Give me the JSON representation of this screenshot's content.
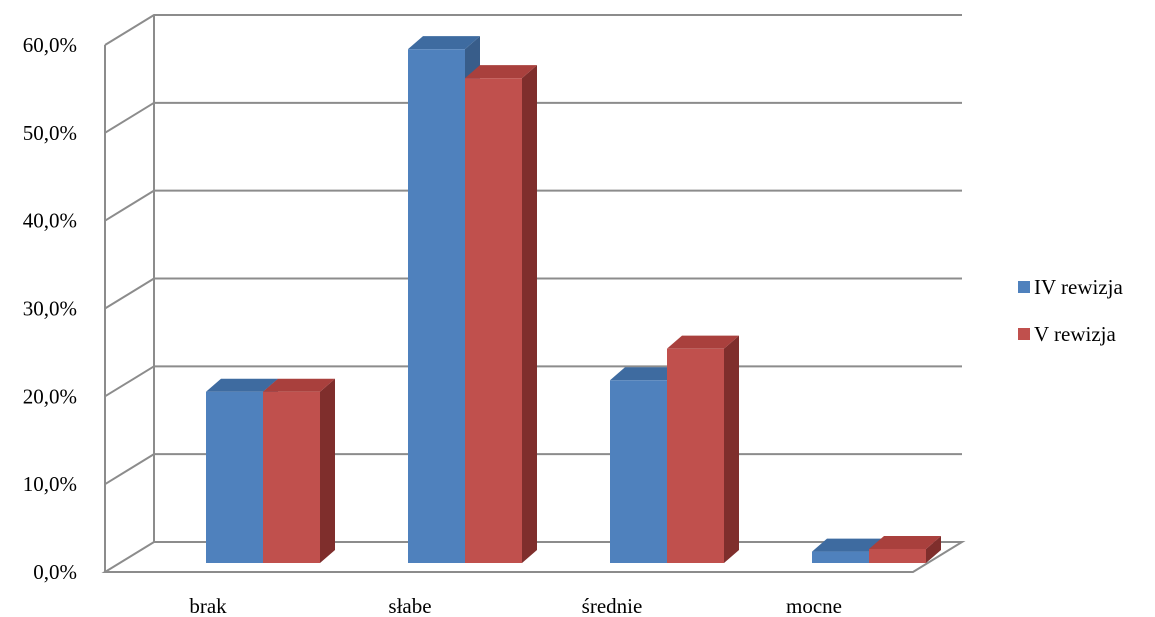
{
  "chart_data": {
    "type": "bar",
    "categories": [
      "brak",
      "słabe",
      "średnie",
      "mocne"
    ],
    "series": [
      {
        "name": "IV rewizja",
        "values": [
          19.5,
          58.5,
          20.8,
          1.3
        ],
        "color": "#4F81BD",
        "side_color": "#385D8A",
        "top_color": "#3E6BA0"
      },
      {
        "name": "V rewizja",
        "values": [
          19.5,
          55.2,
          24.4,
          1.6
        ],
        "color": "#C0504D",
        "side_color": "#7F2E2C",
        "top_color": "#A9403D"
      }
    ],
    "y_tick_labels": [
      "0,0%",
      "10,0%",
      "20,0%",
      "30,0%",
      "40,0%",
      "50,0%",
      "60,0%"
    ],
    "ylim": [
      0,
      60
    ],
    "grid": true,
    "legend_position": "right",
    "title": "",
    "xlabel": "",
    "ylabel": ""
  }
}
